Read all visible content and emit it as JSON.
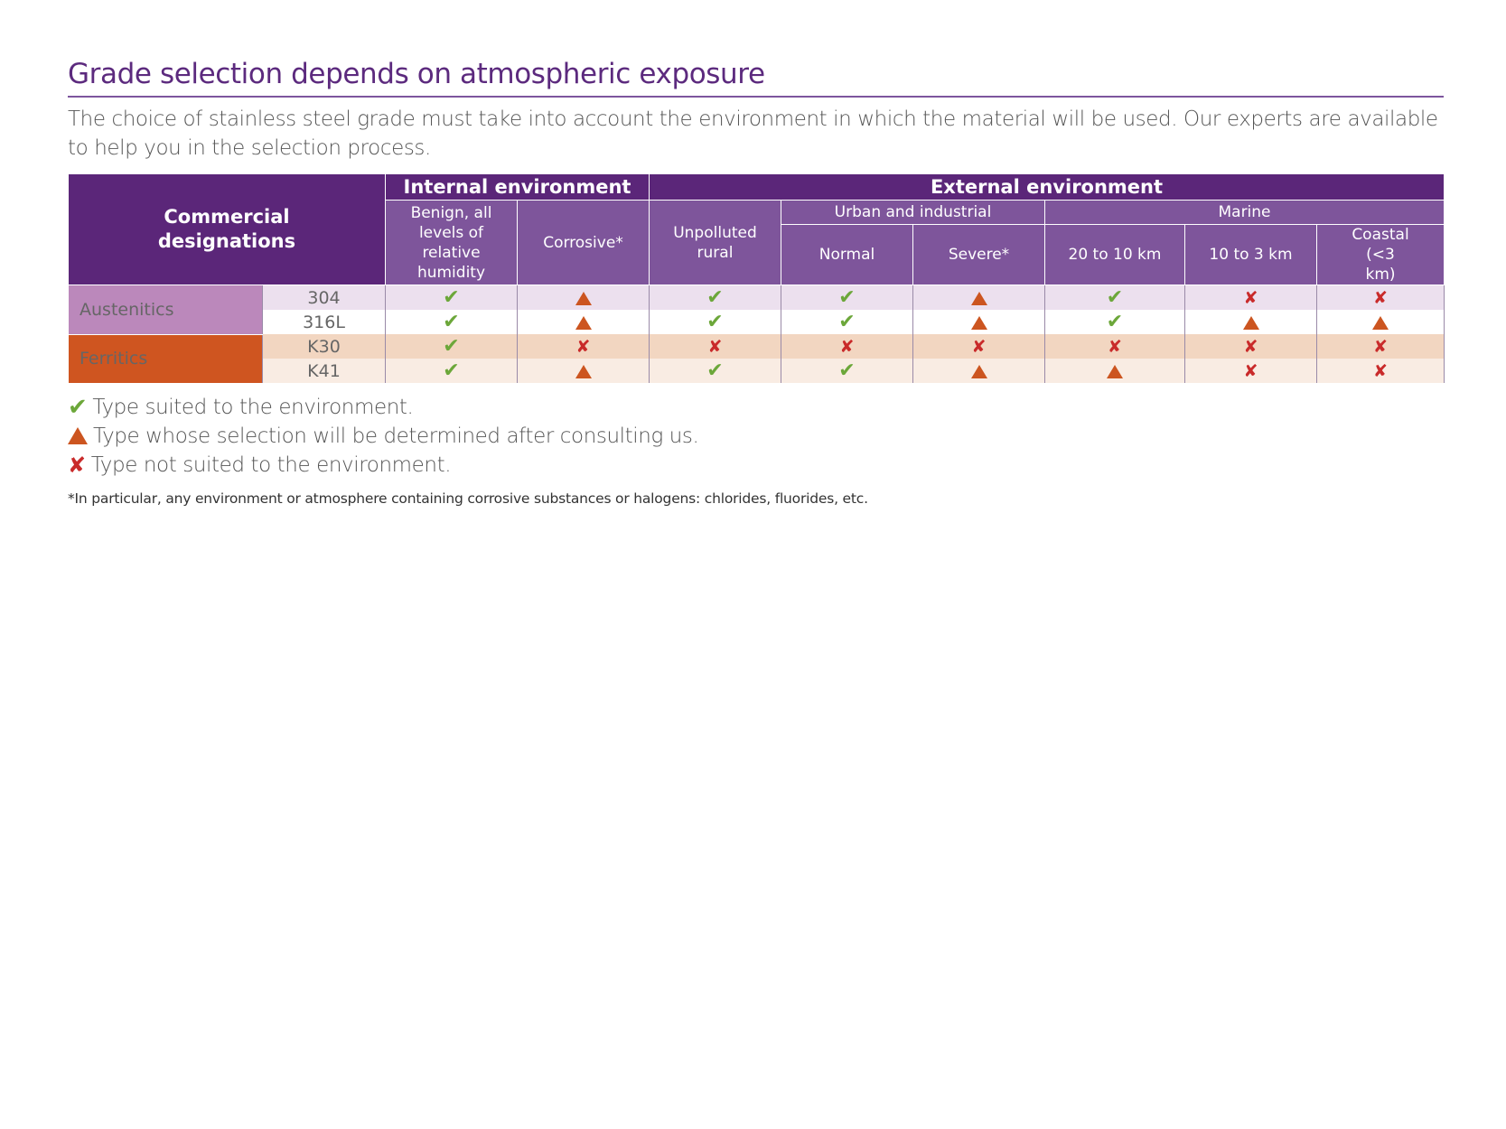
{
  "title": "Grade selection depends on atmospheric exposure",
  "intro": "The choice of stainless steel grade must take into account the environment in which the material will be used. Our experts are available to help you in the selection process.",
  "table": {
    "commercial_designations": "Commercial designations",
    "internal_environment": "Internal environment",
    "external_environment": "External environment",
    "urban_and_industrial": "Urban and industrial",
    "marine": "Marine",
    "columns": [
      "Benign, all levels of relative humidity",
      "Corrosive*",
      "Unpolluted rural",
      "Normal",
      "Severe*",
      "20 to 10 km",
      "10 to 3 km",
      "Coastal (<3 km)"
    ],
    "families": [
      {
        "name": "Austenitics",
        "color": "#bb88bb"
      },
      {
        "name": "Ferritics",
        "color": "#cf5520"
      }
    ],
    "rows": [
      {
        "grade": "304",
        "family": "Austenitics",
        "values": [
          "check",
          "triangle",
          "check",
          "check",
          "triangle",
          "check",
          "cross",
          "cross"
        ]
      },
      {
        "grade": "316L",
        "family": "Austenitics",
        "values": [
          "check",
          "triangle",
          "check",
          "check",
          "triangle",
          "check",
          "triangle",
          "triangle"
        ]
      },
      {
        "grade": "K30",
        "family": "Ferritics",
        "values": [
          "check",
          "cross",
          "cross",
          "cross",
          "cross",
          "cross",
          "cross",
          "cross"
        ]
      },
      {
        "grade": "K41",
        "family": "Ferritics",
        "values": [
          "check",
          "triangle",
          "check",
          "check",
          "triangle",
          "triangle",
          "cross",
          "cross"
        ]
      }
    ]
  },
  "legend": {
    "check": "Type suited to the environment.",
    "triangle": "Type whose selection will be determined after consulting us.",
    "cross": "Type not suited to the environment."
  },
  "footnote": "*In particular, any environment or atmosphere containing corrosive substances or halogens: chlorides, fluorides, etc.",
  "colors": {
    "header_dark": "#5b2679",
    "header_mid": "#7e559b",
    "suited": "#6ca73a",
    "consult": "#cc5520",
    "not_suited": "#c92a2a"
  }
}
